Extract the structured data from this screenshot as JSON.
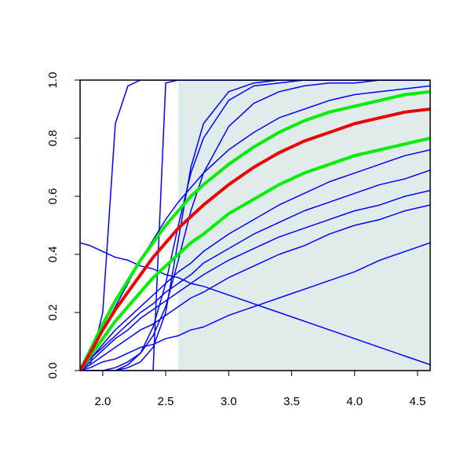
{
  "chart_data": {
    "type": "line",
    "x": [
      1.82,
      1.9,
      2.0,
      2.1,
      2.2,
      2.3,
      2.4,
      2.5,
      2.6,
      2.7,
      2.8,
      3.0,
      3.2,
      3.4,
      3.6,
      3.8,
      4.0,
      4.2,
      4.4,
      4.6
    ],
    "xlim": [
      1.82,
      4.6
    ],
    "ylim": [
      0,
      1
    ],
    "xticks": [
      {
        "value": 2,
        "label": "2.0"
      },
      2.5,
      {
        "value": 3,
        "label": "3.0"
      },
      3.5,
      {
        "value": 4,
        "label": "4.0"
      },
      4.5
    ],
    "yticks": [
      {
        "value": 0,
        "label": "0.0"
      },
      0.2,
      0.4,
      0.6,
      0.8,
      {
        "value": 1,
        "label": "1.0"
      }
    ],
    "shaded_region": {
      "xlim": [
        2.6,
        4.6
      ],
      "ylim": [
        0,
        1
      ],
      "color": "#e0ecec"
    },
    "series": [
      {
        "color": "#0000ff",
        "linewidth": 1.5,
        "values": [
          0,
          0.02,
          0.2,
          0.85,
          0.98,
          1,
          1,
          1,
          1,
          1,
          1,
          1,
          1,
          1,
          1,
          1,
          1,
          1,
          1,
          1
        ]
      },
      {
        "color": "#0000ff",
        "linewidth": 1.5,
        "values": [
          0,
          0,
          0,
          0,
          0,
          0,
          0,
          0.99,
          1,
          1,
          1,
          1,
          1,
          1,
          1,
          1,
          1,
          1,
          1,
          1
        ]
      },
      {
        "color": "#0000ff",
        "linewidth": 1.5,
        "values": [
          0,
          0,
          0,
          0,
          0.01,
          0.03,
          0.08,
          0.2,
          0.45,
          0.7,
          0.85,
          0.96,
          0.99,
          1,
          1,
          1,
          1,
          1,
          1,
          1
        ]
      },
      {
        "color": "#0000ff",
        "linewidth": 1.5,
        "values": [
          0,
          0,
          0,
          0.01,
          0.03,
          0.06,
          0.12,
          0.22,
          0.38,
          0.55,
          0.68,
          0.84,
          0.92,
          0.96,
          0.98,
          0.99,
          0.99,
          1,
          1,
          1
        ]
      },
      {
        "color": "#0000ff",
        "linewidth": 1.5,
        "values": [
          0,
          0,
          0,
          0,
          0.02,
          0.06,
          0.15,
          0.3,
          0.5,
          0.68,
          0.8,
          0.93,
          0.98,
          0.99,
          1,
          1,
          1,
          1,
          1,
          1
        ]
      },
      {
        "color": "#0000ff",
        "linewidth": 1.5,
        "values": [
          0.44,
          0.43,
          0.41,
          0.39,
          0.38,
          0.36,
          0.35,
          0.33,
          0.32,
          0.3,
          0.29,
          0.26,
          0.23,
          0.2,
          0.17,
          0.14,
          0.11,
          0.08,
          0.05,
          0.02
        ]
      },
      {
        "color": "#0000ff",
        "linewidth": 1.5,
        "values": [
          0,
          0.01,
          0.03,
          0.04,
          0.06,
          0.08,
          0.09,
          0.11,
          0.12,
          0.14,
          0.15,
          0.19,
          0.22,
          0.25,
          0.28,
          0.31,
          0.34,
          0.38,
          0.41,
          0.44
        ]
      },
      {
        "color": "#0000ff",
        "linewidth": 1.5,
        "values": [
          0,
          0.06,
          0.14,
          0.22,
          0.3,
          0.38,
          0.45,
          0.52,
          0.58,
          0.63,
          0.68,
          0.76,
          0.82,
          0.87,
          0.9,
          0.93,
          0.95,
          0.96,
          0.97,
          0.98
        ]
      },
      {
        "color": "#0000ff",
        "linewidth": 1.5,
        "values": [
          0,
          0.04,
          0.09,
          0.14,
          0.18,
          0.22,
          0.26,
          0.3,
          0.34,
          0.37,
          0.41,
          0.47,
          0.52,
          0.57,
          0.61,
          0.65,
          0.68,
          0.71,
          0.74,
          0.76
        ]
      },
      {
        "color": "#0000ff",
        "linewidth": 1.5,
        "values": [
          0,
          0.04,
          0.08,
          0.12,
          0.16,
          0.2,
          0.23,
          0.27,
          0.3,
          0.33,
          0.37,
          0.42,
          0.47,
          0.51,
          0.55,
          0.58,
          0.61,
          0.64,
          0.66,
          0.69
        ]
      },
      {
        "color": "#0000ff",
        "linewidth": 1.5,
        "values": [
          0,
          0.03,
          0.07,
          0.11,
          0.14,
          0.18,
          0.21,
          0.24,
          0.27,
          0.3,
          0.33,
          0.38,
          0.42,
          0.46,
          0.49,
          0.52,
          0.55,
          0.57,
          0.6,
          0.62
        ]
      },
      {
        "color": "#0000ff",
        "linewidth": 1.5,
        "values": [
          0,
          0.02,
          0.05,
          0.08,
          0.11,
          0.14,
          0.16,
          0.19,
          0.22,
          0.25,
          0.27,
          0.32,
          0.36,
          0.4,
          0.43,
          0.47,
          0.5,
          0.52,
          0.55,
          0.57
        ]
      },
      {
        "color": "#00ee00",
        "linewidth": 4,
        "values": [
          0,
          0.07,
          0.16,
          0.24,
          0.31,
          0.38,
          0.44,
          0.5,
          0.55,
          0.6,
          0.64,
          0.71,
          0.77,
          0.82,
          0.86,
          0.89,
          0.91,
          0.93,
          0.95,
          0.96
        ]
      },
      {
        "color": "#00ee00",
        "linewidth": 4,
        "values": [
          0,
          0.05,
          0.11,
          0.17,
          0.22,
          0.27,
          0.32,
          0.36,
          0.4,
          0.44,
          0.47,
          0.54,
          0.59,
          0.64,
          0.68,
          0.71,
          0.74,
          0.76,
          0.78,
          0.8
        ]
      },
      {
        "color": "#ee0000",
        "linewidth": 4,
        "values": [
          0,
          0.06,
          0.14,
          0.21,
          0.27,
          0.33,
          0.39,
          0.44,
          0.49,
          0.53,
          0.57,
          0.64,
          0.7,
          0.75,
          0.79,
          0.82,
          0.85,
          0.87,
          0.89,
          0.9
        ]
      }
    ]
  }
}
